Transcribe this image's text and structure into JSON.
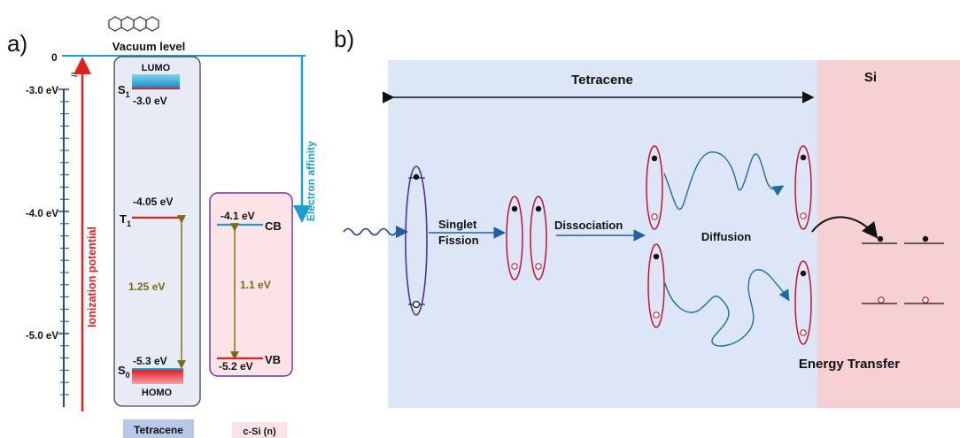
{
  "panel_a": {
    "label": "a)",
    "molecule_icon": "tetracene-structure-icon",
    "vacuum_level": "Vacuum level",
    "zero": "0",
    "approx": "≈",
    "ticks": [
      "-3.0 eV",
      "-4.0 eV",
      "-5.0 eV"
    ],
    "ionization_potential": "Ionization potential",
    "electron_affinity": "Electron affinity",
    "tetracene": {
      "lumo": "LUMO",
      "s1": "S",
      "s1_sub": "1",
      "s1_energy": "-3.0 eV",
      "t1": "T",
      "t1_sub": "1",
      "t1_energy": "-4.05 eV",
      "s0": "S",
      "s0_sub": "0",
      "s0_energy": "-5.3 eV",
      "homo": "HOMO",
      "gap": "1.25 eV",
      "footer": "Tetracene"
    },
    "silicon": {
      "cb_energy": "-4.1 eV",
      "cb": "CB",
      "vb_energy": "-5.2 eV",
      "vb": "VB",
      "gap": "1.1 eV",
      "footer": "c-Si (n)"
    },
    "colors": {
      "red": "#e02020",
      "blue": "#1a9fd4",
      "olive": "#7a6a10",
      "purple": "#7030a0"
    }
  },
  "panel_b": {
    "label": "b)",
    "tetracene": "Tetracene",
    "si": "Si",
    "singlet": "Singlet",
    "fission": "Fission",
    "dissociation": "Dissociation",
    "diffusion": "Diffusion",
    "energy_transfer": "Energy Transfer",
    "colors": {
      "tetracene_bg": "#dde6f7",
      "si_bg": "#f7d0d4",
      "exciton_red": "#c8102e",
      "arrow_blue": "#1f5fa8",
      "path_teal": "#1a6fa0"
    }
  }
}
